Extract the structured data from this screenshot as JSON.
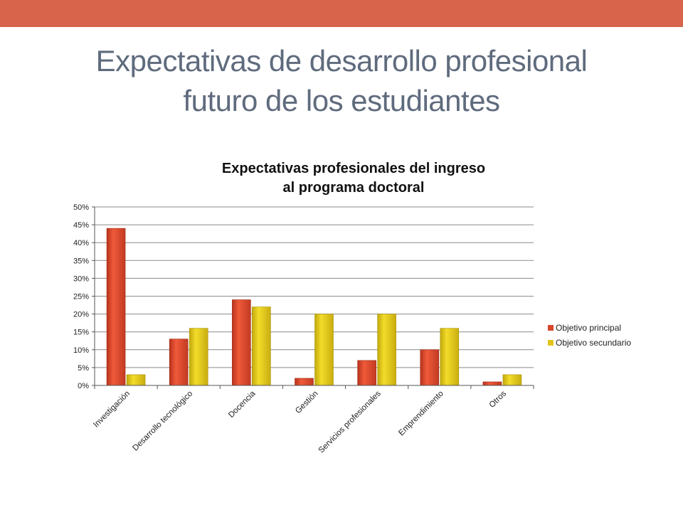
{
  "slide": {
    "title_line1": "Expectativas de desarrollo profesional",
    "title_line2": "futuro de los estudiantes"
  },
  "colors": {
    "top_bar": "#d7644b",
    "title": "#5f6b7d",
    "series_principal": "#d9462b",
    "series_secundario": "#e1c51a"
  },
  "chart_data": {
    "type": "bar",
    "title_line1": "Expectativas profesionales del ingreso",
    "title_line2": "al programa doctoral",
    "categories": [
      "Investigación",
      "Desarrollo tecnológico",
      "Docencia",
      "Gestión",
      "Servicios profesionales",
      "Emprendimiento",
      "Otros"
    ],
    "series": [
      {
        "name": "Objetivo principal",
        "values": [
          44,
          13,
          24,
          2,
          7,
          10,
          1
        ]
      },
      {
        "name": "Objetivo secundario",
        "values": [
          3,
          16,
          22,
          20,
          20,
          16,
          3
        ]
      }
    ],
    "ylim": [
      0,
      50
    ],
    "yticks": [
      "0%",
      "5%",
      "10%",
      "15%",
      "20%",
      "25%",
      "30%",
      "35%",
      "40%",
      "45%",
      "50%"
    ],
    "grid": true,
    "legend_position": "right"
  }
}
